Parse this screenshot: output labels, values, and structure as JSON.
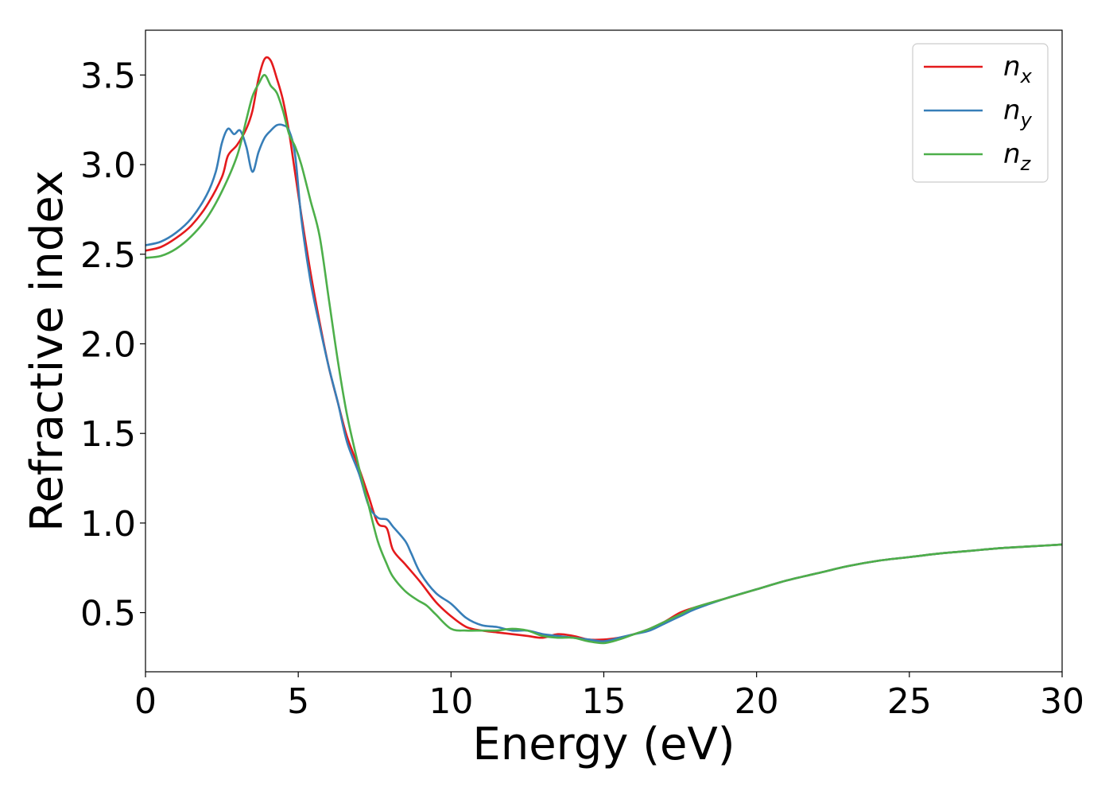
{
  "chart_data": {
    "type": "line",
    "title": "",
    "xlabel": "Energy (eV)",
    "ylabel": "Refractive index",
    "xlim": [
      0,
      30
    ],
    "ylim": [
      0.17,
      3.75
    ],
    "xticks": [
      0,
      5,
      10,
      15,
      20,
      25,
      30
    ],
    "xtick_labels": [
      "0",
      "5",
      "10",
      "15",
      "20",
      "25",
      "30"
    ],
    "yticks": [
      0.5,
      1.0,
      1.5,
      2.0,
      2.5,
      3.0,
      3.5
    ],
    "ytick_labels": [
      "0.5",
      "1.0",
      "1.5",
      "2.0",
      "2.5",
      "3.0",
      "3.5"
    ],
    "grid": false,
    "legend_position": "top-right",
    "series": [
      {
        "name": "n_x",
        "legend_base": "n",
        "legend_sub": "x",
        "color": "#e41a1c",
        "x": [
          0,
          0.5,
          1,
          1.5,
          2,
          2.5,
          2.7,
          3.0,
          3.3,
          3.5,
          3.7,
          3.9,
          4.1,
          4.3,
          4.5,
          4.7,
          4.9,
          5.1,
          5.4,
          5.7,
          6.0,
          6.3,
          6.6,
          7.0,
          7.3,
          7.6,
          7.9,
          8.1,
          8.5,
          9.0,
          9.5,
          10.0,
          10.5,
          11.0,
          11.5,
          12.0,
          12.5,
          13.0,
          13.5,
          14.0,
          14.5,
          15.0,
          15.5,
          16.0,
          16.5,
          17.0,
          17.5,
          18.0,
          19.0,
          20.0,
          21.0,
          22.0,
          23.0,
          24.0,
          25.0,
          26.0,
          27.0,
          28.0,
          29.0,
          30.0
        ],
        "values": [
          2.52,
          2.54,
          2.59,
          2.66,
          2.77,
          2.93,
          3.05,
          3.11,
          3.2,
          3.3,
          3.48,
          3.59,
          3.58,
          3.48,
          3.36,
          3.18,
          2.95,
          2.72,
          2.4,
          2.12,
          1.87,
          1.67,
          1.48,
          1.3,
          1.15,
          1.0,
          0.97,
          0.85,
          0.77,
          0.67,
          0.56,
          0.48,
          0.42,
          0.4,
          0.39,
          0.38,
          0.37,
          0.36,
          0.38,
          0.37,
          0.35,
          0.35,
          0.36,
          0.38,
          0.41,
          0.45,
          0.5,
          0.53,
          0.58,
          0.63,
          0.68,
          0.72,
          0.76,
          0.79,
          0.81,
          0.83,
          0.845,
          0.86,
          0.87,
          0.88
        ]
      },
      {
        "name": "n_y",
        "legend_base": "n",
        "legend_sub": "y",
        "color": "#377eb8",
        "x": [
          0,
          0.5,
          1,
          1.5,
          2,
          2.3,
          2.5,
          2.7,
          2.9,
          3.1,
          3.3,
          3.5,
          3.7,
          3.9,
          4.1,
          4.3,
          4.5,
          4.7,
          4.9,
          5.1,
          5.4,
          5.7,
          6.0,
          6.3,
          6.6,
          7.0,
          7.3,
          7.6,
          7.9,
          8.1,
          8.5,
          8.7,
          9.0,
          9.5,
          10.0,
          10.5,
          11.0,
          11.5,
          12.0,
          12.5,
          13.0,
          13.5,
          14.0,
          14.5,
          15.0,
          15.5,
          16.0,
          16.5,
          17.0,
          17.5,
          18.0,
          19.0,
          20.0,
          21.0,
          22.0,
          23.0,
          24.0,
          25.0,
          26.0,
          27.0,
          28.0,
          29.0,
          30.0
        ],
        "values": [
          2.55,
          2.57,
          2.62,
          2.7,
          2.83,
          2.96,
          3.12,
          3.2,
          3.17,
          3.19,
          3.1,
          2.96,
          3.07,
          3.15,
          3.19,
          3.22,
          3.22,
          3.19,
          3.05,
          2.7,
          2.35,
          2.1,
          1.87,
          1.67,
          1.45,
          1.27,
          1.1,
          1.03,
          1.02,
          0.98,
          0.9,
          0.83,
          0.72,
          0.61,
          0.55,
          0.47,
          0.43,
          0.42,
          0.4,
          0.4,
          0.38,
          0.37,
          0.36,
          0.35,
          0.34,
          0.36,
          0.38,
          0.4,
          0.44,
          0.48,
          0.52,
          0.58,
          0.63,
          0.68,
          0.72,
          0.76,
          0.79,
          0.81,
          0.83,
          0.845,
          0.86,
          0.87,
          0.88
        ]
      },
      {
        "name": "n_z",
        "legend_base": "n",
        "legend_sub": "z",
        "color": "#4daf4a",
        "x": [
          0,
          0.5,
          1,
          1.5,
          2,
          2.5,
          3.0,
          3.3,
          3.5,
          3.7,
          3.9,
          4.1,
          4.3,
          4.5,
          4.7,
          4.9,
          5.1,
          5.4,
          5.7,
          6.0,
          6.3,
          6.6,
          7.0,
          7.3,
          7.6,
          7.9,
          8.1,
          8.5,
          8.9,
          9.2,
          9.5,
          10.0,
          10.5,
          11.0,
          11.5,
          12.0,
          12.5,
          13.0,
          13.5,
          14.0,
          14.5,
          15.0,
          15.5,
          16.0,
          16.5,
          17.0,
          17.5,
          18.0,
          19.0,
          20.0,
          21.0,
          22.0,
          23.0,
          24.0,
          25.0,
          26.0,
          27.0,
          28.0,
          29.0,
          30.0
        ],
        "values": [
          2.48,
          2.49,
          2.53,
          2.6,
          2.7,
          2.85,
          3.05,
          3.25,
          3.38,
          3.45,
          3.5,
          3.44,
          3.4,
          3.3,
          3.17,
          3.1,
          3.0,
          2.8,
          2.6,
          2.25,
          1.9,
          1.6,
          1.3,
          1.1,
          0.9,
          0.77,
          0.7,
          0.62,
          0.57,
          0.54,
          0.49,
          0.41,
          0.4,
          0.4,
          0.4,
          0.41,
          0.4,
          0.37,
          0.36,
          0.36,
          0.34,
          0.33,
          0.35,
          0.38,
          0.41,
          0.45,
          0.49,
          0.53,
          0.58,
          0.63,
          0.68,
          0.72,
          0.76,
          0.79,
          0.81,
          0.83,
          0.845,
          0.86,
          0.87,
          0.88
        ]
      }
    ]
  }
}
